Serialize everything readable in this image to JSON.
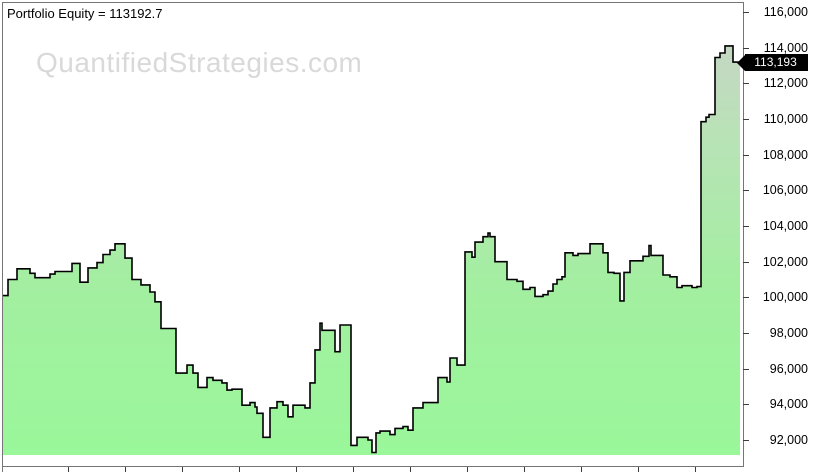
{
  "header": {
    "title": "Portfolio Equity = 113192.7"
  },
  "watermark": {
    "text": "QuantifiedStrategies.com"
  },
  "badge": {
    "value_label": "113,193",
    "value": 113192.7,
    "bg": "#000000",
    "text_color": "#ffffff"
  },
  "colors": {
    "curve_stroke": "#000000",
    "fill_top": "#cbd1ca",
    "fill_upper_mid": "#b8e3b6",
    "fill_lower_mid": "#a2efa0",
    "fill_bottom": "#9af79a",
    "axis_line": "#757575",
    "tick": "#3c3c3c",
    "label_text": "#000000",
    "watermark": "#d9d9d9",
    "badge_bg": "#000000",
    "badge_text": "#ffffff"
  },
  "chart_data": {
    "type": "area",
    "style": "step-equity-curve",
    "title": "Portfolio Equity = 113192.7",
    "final_value": 113192.7,
    "grid": "off",
    "legend_position": "none",
    "y_axis": {
      "side": "right",
      "tick_labels": [
        "116,000",
        "114,000",
        "112,000",
        "110,000",
        "108,000",
        "106,000",
        "104,000",
        "102,000",
        "100,000",
        "98,000",
        "96,000",
        "94,000",
        "92,000"
      ],
      "tick_values": [
        116000,
        114000,
        112000,
        110000,
        108000,
        106000,
        104000,
        102000,
        100000,
        98000,
        96000,
        94000,
        92000
      ],
      "visible_range": [
        91200,
        116500
      ]
    },
    "x_axis": {
      "labels_visible": false,
      "tick_xs": [
        68,
        125,
        182,
        239,
        296,
        353,
        410,
        467,
        524,
        581,
        638,
        695
      ]
    },
    "series": [
      {
        "name": "Portfolio Equity",
        "step_format": [
          "x_px",
          "equity_value"
        ],
        "steps": [
          [
            3,
            100100
          ],
          [
            8,
            101000
          ],
          [
            17,
            101600
          ],
          [
            30,
            101350
          ],
          [
            35,
            101100
          ],
          [
            50,
            101300
          ],
          [
            55,
            101450
          ],
          [
            72,
            101900
          ],
          [
            80,
            100850
          ],
          [
            88,
            101650
          ],
          [
            97,
            101950
          ],
          [
            103,
            102400
          ],
          [
            110,
            102650
          ],
          [
            115,
            103000
          ],
          [
            125,
            102200
          ],
          [
            132,
            101000
          ],
          [
            141,
            100700
          ],
          [
            150,
            100300
          ],
          [
            155,
            99750
          ],
          [
            161,
            98250
          ],
          [
            176,
            95750
          ],
          [
            187,
            96200
          ],
          [
            193,
            95750
          ],
          [
            198,
            94950
          ],
          [
            207,
            95500
          ],
          [
            213,
            95350
          ],
          [
            222,
            95200
          ],
          [
            227,
            94800
          ],
          [
            232,
            94850
          ],
          [
            242,
            93950
          ],
          [
            250,
            94100
          ],
          [
            255,
            93850
          ],
          [
            257,
            93500
          ],
          [
            263,
            92150
          ],
          [
            270,
            93800
          ],
          [
            277,
            94150
          ],
          [
            283,
            93950
          ],
          [
            288,
            93300
          ],
          [
            293,
            93950
          ],
          [
            305,
            93800
          ],
          [
            310,
            95200
          ],
          [
            315,
            97050
          ],
          [
            320,
            98550
          ],
          [
            322,
            98150
          ],
          [
            335,
            96950
          ],
          [
            340,
            98450
          ],
          [
            351,
            91700
          ],
          [
            357,
            92150
          ],
          [
            368,
            92000
          ],
          [
            372,
            91300
          ],
          [
            376,
            92400
          ],
          [
            380,
            92500
          ],
          [
            390,
            92300
          ],
          [
            395,
            92650
          ],
          [
            403,
            92750
          ],
          [
            408,
            92550
          ],
          [
            413,
            93800
          ],
          [
            423,
            94100
          ],
          [
            438,
            95500
          ],
          [
            447,
            95250
          ],
          [
            450,
            96600
          ],
          [
            457,
            96200
          ],
          [
            465,
            102550
          ],
          [
            472,
            102250
          ],
          [
            475,
            103100
          ],
          [
            483,
            103400
          ],
          [
            488,
            103600
          ],
          [
            490,
            103400
          ],
          [
            495,
            102000
          ],
          [
            507,
            101000
          ],
          [
            517,
            100900
          ],
          [
            523,
            100450
          ],
          [
            530,
            100550
          ],
          [
            535,
            100050
          ],
          [
            543,
            100150
          ],
          [
            548,
            100350
          ],
          [
            553,
            100750
          ],
          [
            557,
            101000
          ],
          [
            562,
            101150
          ],
          [
            565,
            102500
          ],
          [
            573,
            102350
          ],
          [
            578,
            102450
          ],
          [
            590,
            103000
          ],
          [
            603,
            102500
          ],
          [
            608,
            101400
          ],
          [
            614,
            101350
          ],
          [
            620,
            99800
          ],
          [
            624,
            101400
          ],
          [
            630,
            102050
          ],
          [
            643,
            102300
          ],
          [
            649,
            102900
          ],
          [
            651,
            102350
          ],
          [
            663,
            101250
          ],
          [
            670,
            101150
          ],
          [
            677,
            100550
          ],
          [
            682,
            100650
          ],
          [
            692,
            100550
          ],
          [
            697,
            100600
          ],
          [
            701,
            109850
          ],
          [
            706,
            110100
          ],
          [
            709,
            110250
          ],
          [
            715,
            113450
          ],
          [
            720,
            113700
          ],
          [
            725,
            114100
          ],
          [
            733,
            113192.7
          ]
        ],
        "x_end": 740
      }
    ]
  }
}
